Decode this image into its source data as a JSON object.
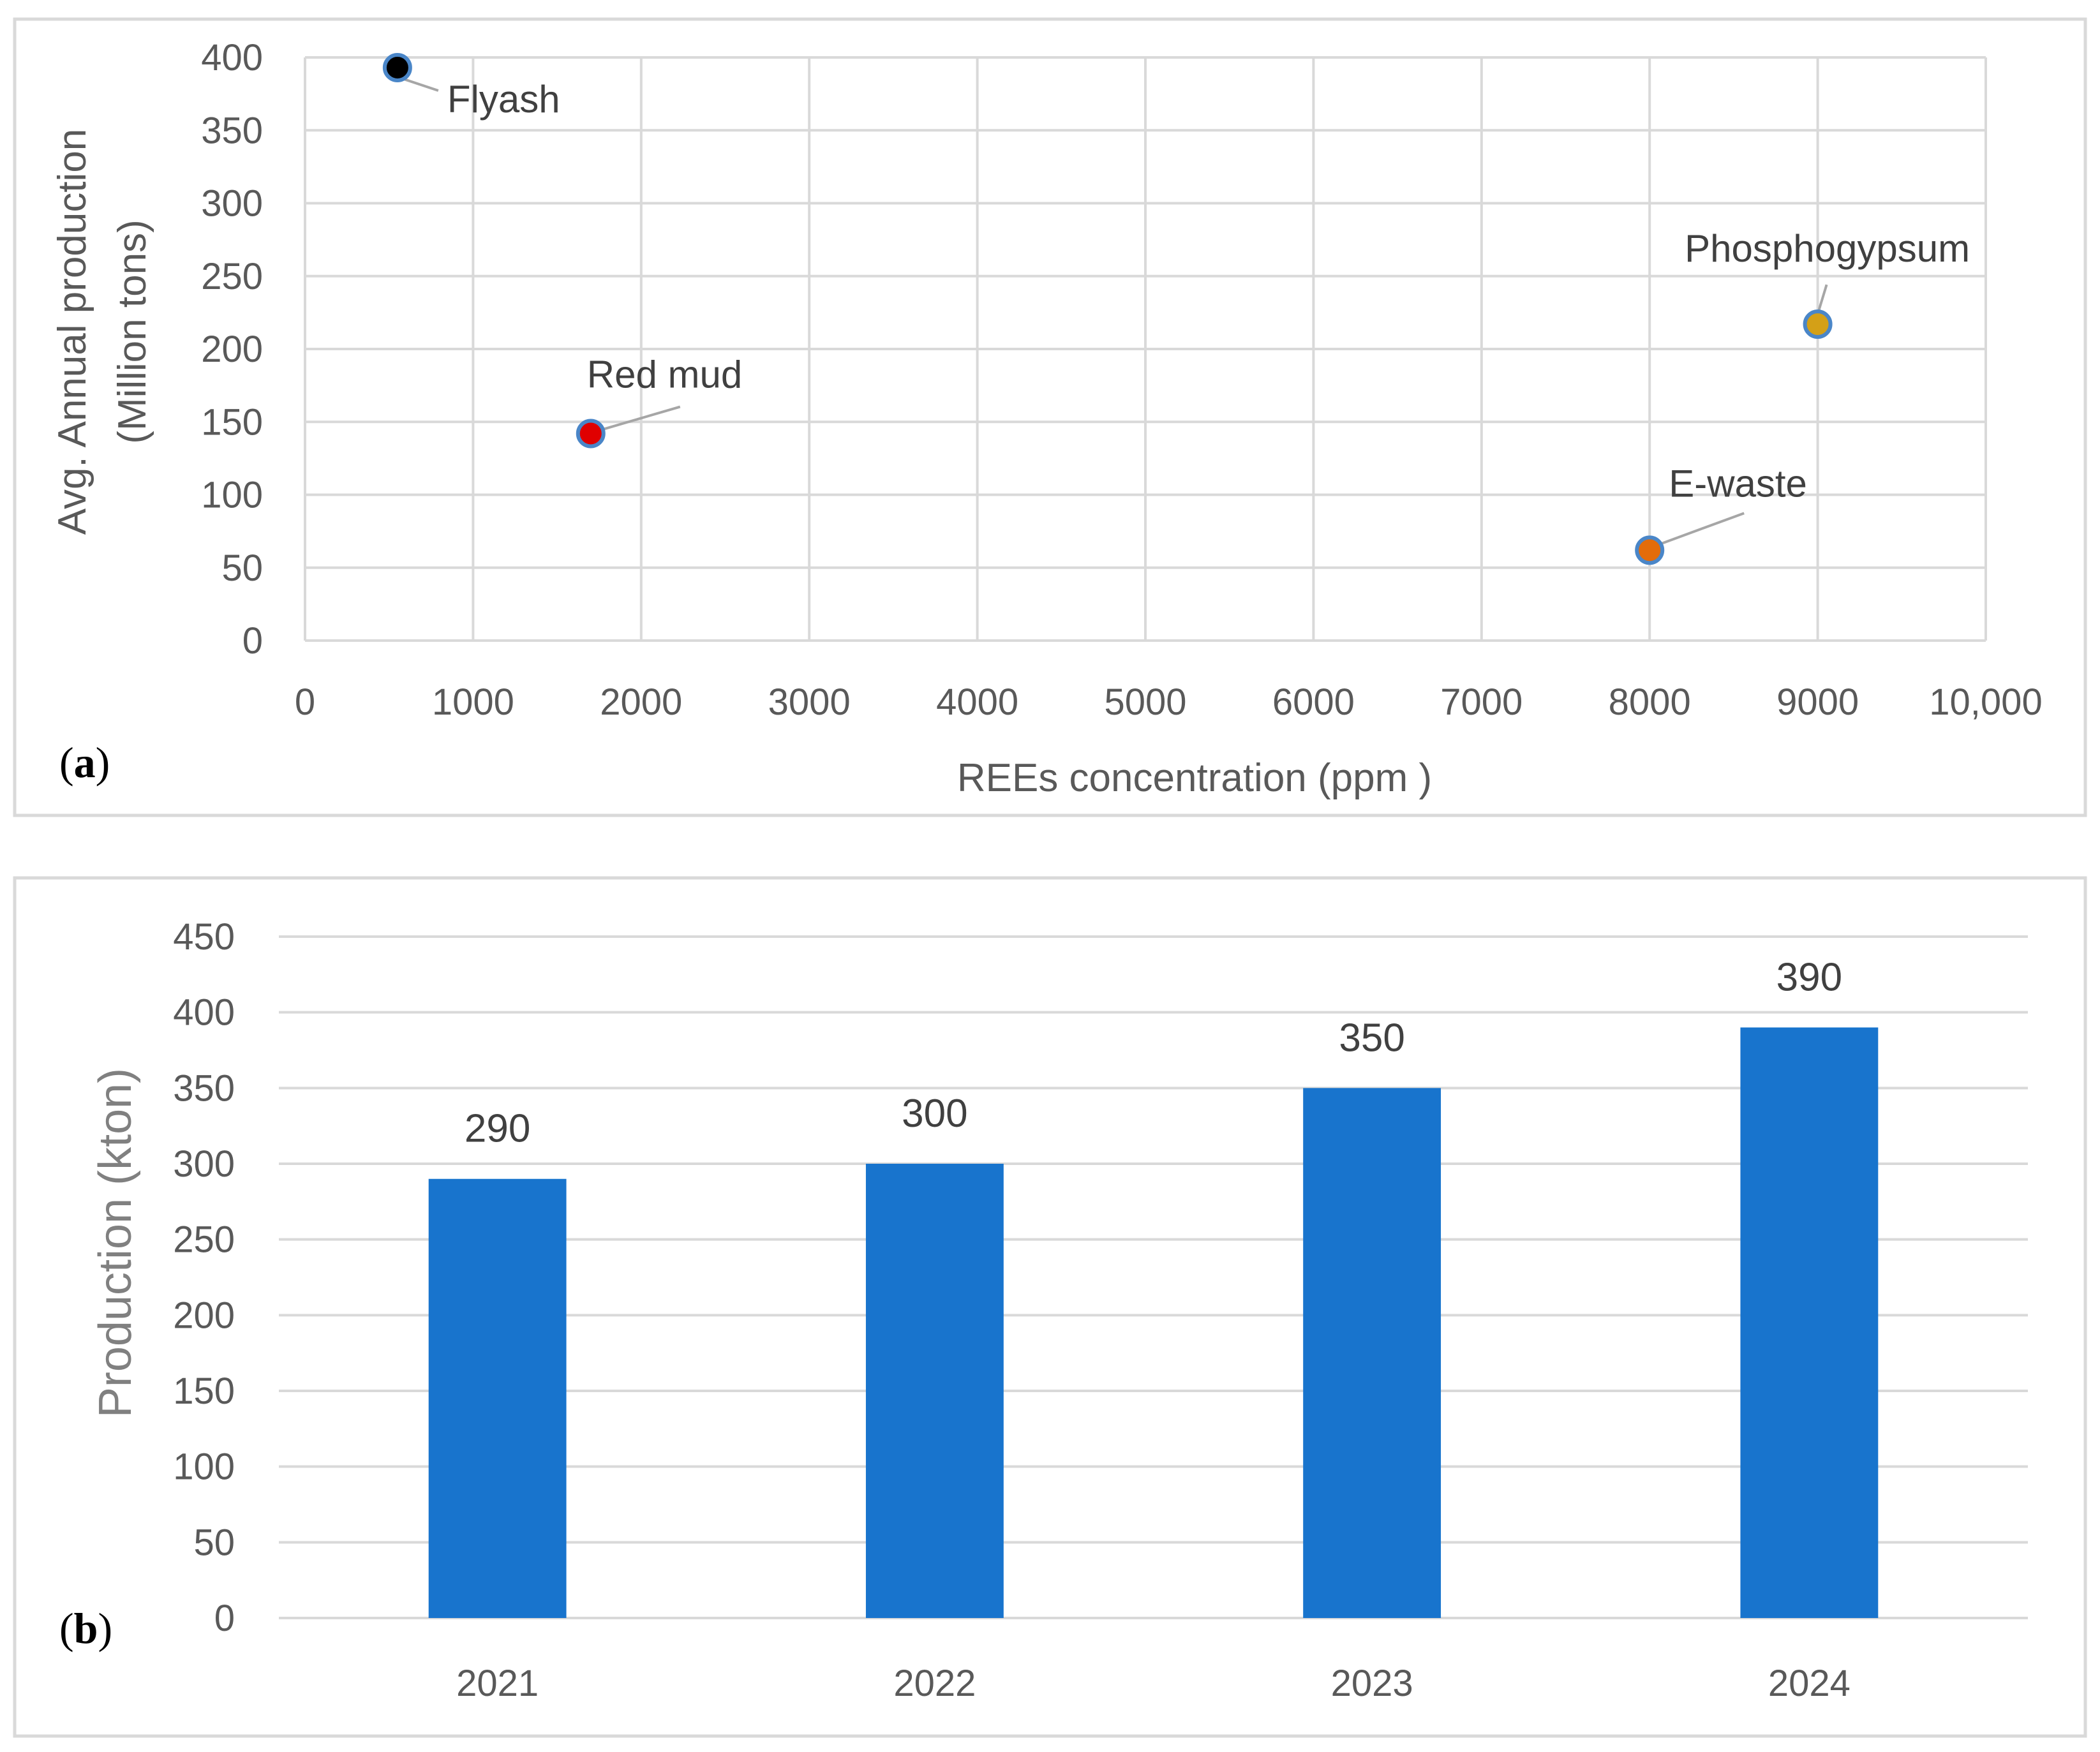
{
  "chart_data": [
    {
      "panel_label": "a",
      "type": "scatter",
      "xlabel": "REEs concentration (ppm )",
      "ylabel_line1": "Avg. Annual production",
      "ylabel_line2": "(Million tons)",
      "xlim": [
        0,
        10000
      ],
      "ylim": [
        0,
        400
      ],
      "x_ticks": [
        "0",
        "1000",
        "2000",
        "3000",
        "4000",
        "5000",
        "6000",
        "7000",
        "8000",
        "9000",
        "10,000"
      ],
      "y_ticks": [
        "0",
        "50",
        "100",
        "150",
        "200",
        "250",
        "300",
        "350",
        "400"
      ],
      "grid": true,
      "points": [
        {
          "label": "Flyash",
          "x": 550,
          "y": 393,
          "color": "#000000"
        },
        {
          "label": "Red mud",
          "x": 1700,
          "y": 142,
          "color": "#e00000"
        },
        {
          "label": "E-waste",
          "x": 8000,
          "y": 62,
          "color": "#e36c0a"
        },
        {
          "label": "Phosphogypsum",
          "x": 9000,
          "y": 217,
          "color": "#d4a017"
        }
      ]
    },
    {
      "panel_label": "b",
      "type": "bar",
      "xlabel": "",
      "ylabel": "Production (kton)",
      "ylim": [
        0,
        450
      ],
      "y_ticks": [
        "0",
        "50",
        "100",
        "150",
        "200",
        "250",
        "300",
        "350",
        "400",
        "450"
      ],
      "grid": true,
      "categories": [
        "2021",
        "2022",
        "2023",
        "2024"
      ],
      "values": [
        290,
        300,
        350,
        390
      ],
      "data_labels": [
        "290",
        "300",
        "350",
        "390"
      ],
      "bar_color": "#1874cd"
    }
  ]
}
